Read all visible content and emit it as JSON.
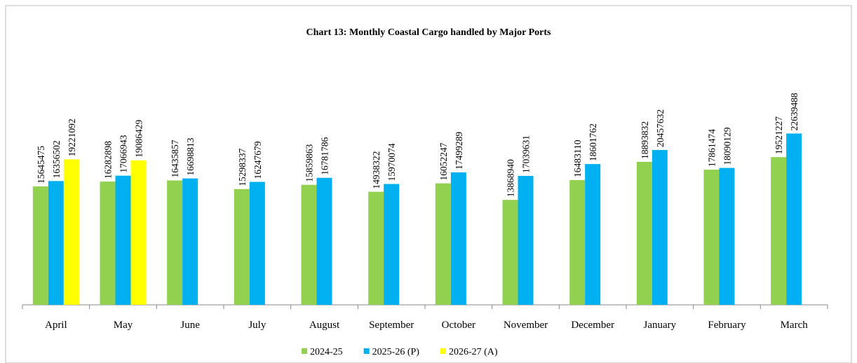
{
  "chart_data": {
    "type": "bar",
    "title": "Chart 13: Monthly Coastal Cargo handled by Major Ports",
    "categories": [
      "April",
      "May",
      "June",
      "July",
      "August",
      "September",
      "October",
      "November",
      "December",
      "January",
      "February",
      "March"
    ],
    "series": [
      {
        "name": "2024-25",
        "color": "#92d050",
        "values": [
          15645475,
          16282898,
          16435857,
          15298337,
          15859863,
          14938322,
          16052247,
          13868940,
          16483110,
          18893832,
          17861474,
          19521227
        ]
      },
      {
        "name": "2025-26 (P)",
        "color": "#00b0f0",
        "values": [
          16356502,
          17066943,
          16698813,
          16247679,
          16781786,
          15970074,
          17499289,
          17039631,
          18601762,
          20457632,
          18090129,
          22639488
        ]
      },
      {
        "name": "2026-27 (A)",
        "color": "#ffff00",
        "values": [
          19221092,
          19086429,
          null,
          null,
          null,
          null,
          null,
          null,
          null,
          null,
          null,
          null
        ]
      }
    ],
    "ylim": [
      0,
      30000000
    ],
    "legend": "bottom"
  }
}
